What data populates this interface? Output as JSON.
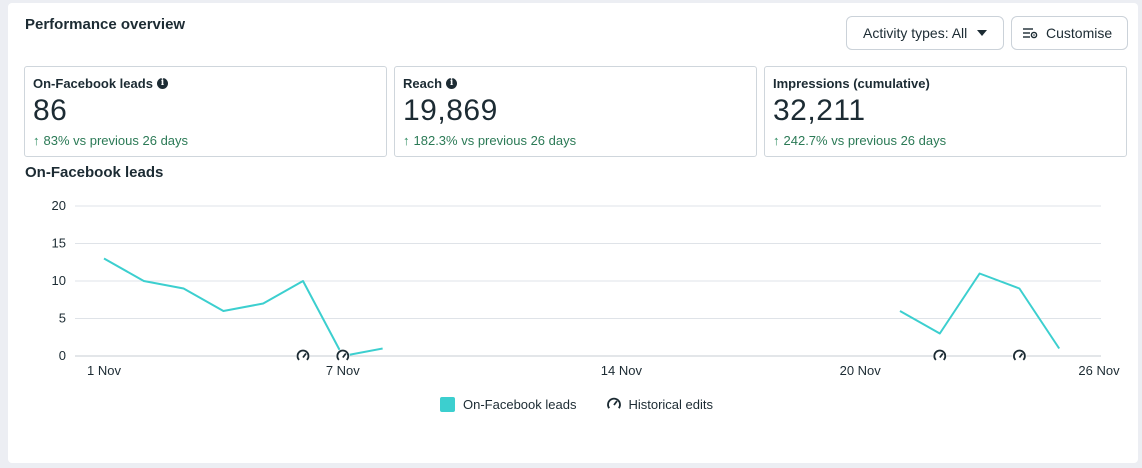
{
  "panel": {
    "title": "Performance overview",
    "activity_button_label": "Activity types: All",
    "customise_button_label": "Customise"
  },
  "cards": [
    {
      "label": "On-Facebook leads",
      "info": true,
      "value": "86",
      "change": "83% vs previous 26 days"
    },
    {
      "label": "Reach",
      "info": true,
      "value": "19,869",
      "change": "182.3% vs previous 26 days"
    },
    {
      "label": "Impressions (cumulative)",
      "info": false,
      "value": "32,211",
      "change": "242.7% vs previous 26 days"
    }
  ],
  "chart_title": "On-Facebook leads",
  "legend": {
    "series_label": "On-Facebook leads",
    "edits_label": "Historical edits"
  },
  "colors": {
    "series": "#3ccfcf",
    "positive": "#2b7a56",
    "grid": "#dfe3e8"
  },
  "chart_data": {
    "type": "line",
    "title": "On-Facebook leads",
    "xlabel": "",
    "ylabel": "",
    "ylim": [
      0,
      20
    ],
    "yticks": [
      0,
      5,
      10,
      15,
      20
    ],
    "x_tick_labels": [
      {
        "day": 1,
        "label": "1 Nov"
      },
      {
        "day": 7,
        "label": "7 Nov"
      },
      {
        "day": 14,
        "label": "14 Nov"
      },
      {
        "day": 20,
        "label": "20 Nov"
      },
      {
        "day": 26,
        "label": "26 Nov"
      }
    ],
    "grid": true,
    "legend_position": "bottom",
    "series": [
      {
        "name": "On-Facebook leads",
        "segments": [
          [
            [
              1,
              13
            ],
            [
              2,
              10
            ],
            [
              3,
              9
            ],
            [
              4,
              6
            ],
            [
              5,
              7
            ],
            [
              6,
              10
            ],
            [
              7,
              0
            ],
            [
              8,
              1
            ]
          ],
          [
            [
              21,
              6
            ],
            [
              22,
              3
            ],
            [
              23,
              11
            ],
            [
              24,
              9
            ],
            [
              25,
              1
            ]
          ]
        ]
      }
    ],
    "historical_edits_days": [
      6,
      7,
      22,
      24
    ]
  }
}
